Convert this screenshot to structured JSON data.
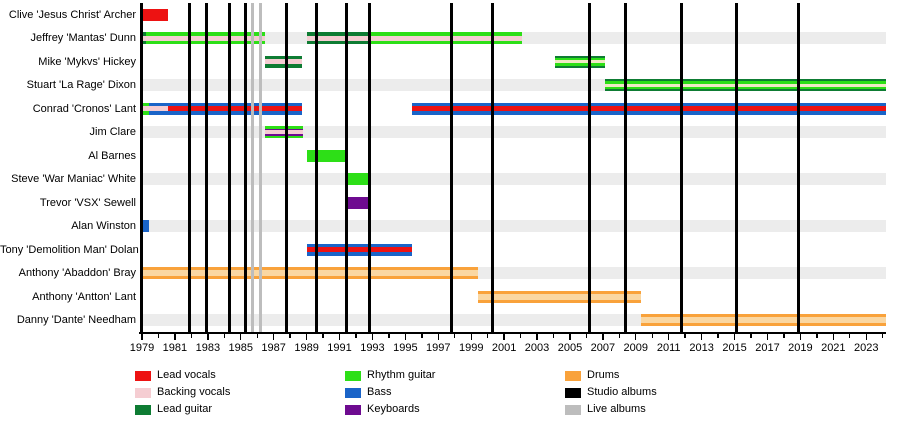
{
  "palette": {
    "lead_vocals": "#ed1212",
    "backing_vocals": "#f5cdd2",
    "lead_guitar": "#0e7c33",
    "rhythm_guitar": "#2ddf17",
    "bass": "#1a64c8",
    "keyboards": "#6e0b90",
    "drums": "#f9a23b",
    "drums_light": "#fad7a2",
    "cream": "#f0e9c5",
    "studio_albums": "#000000",
    "live_albums": "#bdbdbd"
  },
  "chart_data": {
    "type": "timeline",
    "x_axis": {
      "start": 1979,
      "end": 2024.2,
      "major_tick_years": [
        1979,
        1981,
        1983,
        1985,
        1987,
        1989,
        1991,
        1993,
        1995,
        1997,
        1999,
        2001,
        2003,
        2005,
        2007,
        2009,
        2011,
        2013,
        2015,
        2017,
        2019,
        2021,
        2023
      ],
      "minor_tick_interval": 1
    },
    "members": [
      {
        "name": "Clive 'Jesus Christ' Archer",
        "bars": [
          {
            "start": 1979,
            "end": 1980.6,
            "stripes": [
              [
                "lead_vocals",
                1
              ]
            ]
          }
        ]
      },
      {
        "name": "Jeffrey 'Mantas' Dunn",
        "bars": [
          {
            "start": 1979,
            "end": 1979.25,
            "stripes": [
              [
                "lead_guitar",
                0.3
              ],
              [
                "backing_vocals",
                0.4
              ],
              [
                "lead_guitar",
                0.3
              ]
            ]
          },
          {
            "start": 1979.25,
            "end": 1986.5,
            "stripes": [
              [
                "rhythm_guitar",
                0.3
              ],
              [
                "backing_vocals",
                0.4
              ],
              [
                "rhythm_guitar",
                0.3
              ]
            ]
          },
          {
            "start": 1989,
            "end": 1992.75,
            "stripes": [
              [
                "lead_guitar",
                0.3
              ],
              [
                "backing_vocals",
                0.4
              ],
              [
                "lead_guitar",
                0.3
              ]
            ]
          },
          {
            "start": 1992.75,
            "end": 2002.1,
            "stripes": [
              [
                "rhythm_guitar",
                0.3
              ],
              [
                "backing_vocals",
                0.4
              ],
              [
                "rhythm_guitar",
                0.3
              ]
            ]
          }
        ]
      },
      {
        "name": "Mike 'Mykvs' Hickey",
        "bars": [
          {
            "start": 1986.5,
            "end": 1988.7,
            "stripes": [
              [
                "lead_guitar",
                0.3
              ],
              [
                "backing_vocals",
                0.4
              ],
              [
                "lead_guitar",
                0.3
              ]
            ]
          },
          {
            "start": 2004.1,
            "end": 2007.1,
            "stripes": [
              [
                "lead_guitar",
                0.18
              ],
              [
                "rhythm_guitar",
                0.2
              ],
              [
                "cream",
                0.24
              ],
              [
                "rhythm_guitar",
                0.2
              ],
              [
                "lead_guitar",
                0.18
              ]
            ]
          }
        ]
      },
      {
        "name": "Stuart 'La Rage' Dixon",
        "bars": [
          {
            "start": 2007.1,
            "end": 2024.2,
            "stripes": [
              [
                "lead_guitar",
                0.18
              ],
              [
                "rhythm_guitar",
                0.2
              ],
              [
                "cream",
                0.24
              ],
              [
                "rhythm_guitar",
                0.2
              ],
              [
                "lead_guitar",
                0.18
              ]
            ]
          }
        ]
      },
      {
        "name": "Conrad 'Cronos' Lant",
        "bars": [
          {
            "start": 1979,
            "end": 1979.4,
            "stripes": [
              [
                "rhythm_guitar",
                0.3
              ],
              [
                "backing_vocals",
                0.4
              ],
              [
                "rhythm_guitar",
                0.3
              ]
            ]
          },
          {
            "start": 1979.4,
            "end": 1980.6,
            "stripes": [
              [
                "bass",
                0.29
              ],
              [
                "backing_vocals",
                0.42
              ],
              [
                "bass",
                0.29
              ]
            ]
          },
          {
            "start": 1980.6,
            "end": 1988.7,
            "stripes": [
              [
                "bass",
                0.29
              ],
              [
                "lead_vocals",
                0.42
              ],
              [
                "bass",
                0.29
              ]
            ]
          },
          {
            "start": 1995.4,
            "end": 2024.2,
            "stripes": [
              [
                "bass",
                0.29
              ],
              [
                "lead_vocals",
                0.42
              ],
              [
                "bass",
                0.29
              ]
            ]
          }
        ]
      },
      {
        "name": "Jim Clare",
        "bars": [
          {
            "start": 1986.5,
            "end": 1988.8,
            "stripes": [
              [
                "rhythm_guitar",
                0.19
              ],
              [
                "keyboards",
                0.15
              ],
              [
                "backing_vocals",
                0.32
              ],
              [
                "keyboards",
                0.15
              ],
              [
                "rhythm_guitar",
                0.19
              ]
            ]
          }
        ]
      },
      {
        "name": "Al Barnes",
        "bars": [
          {
            "start": 1989,
            "end": 1991.35,
            "stripes": [
              [
                "rhythm_guitar",
                1
              ]
            ]
          }
        ]
      },
      {
        "name": "Steve 'War Maniac' White",
        "bars": [
          {
            "start": 1991.35,
            "end": 1992.75,
            "stripes": [
              [
                "rhythm_guitar",
                1
              ]
            ]
          }
        ]
      },
      {
        "name": "Trevor 'VSX' Sewell",
        "bars": [
          {
            "start": 1991.35,
            "end": 1992.75,
            "stripes": [
              [
                "keyboards",
                1
              ]
            ]
          }
        ]
      },
      {
        "name": "Alan Winston",
        "bars": [
          {
            "start": 1979,
            "end": 1979.45,
            "stripes": [
              [
                "bass",
                1
              ]
            ]
          }
        ]
      },
      {
        "name": "Tony 'Demolition Man' Dolan",
        "bars": [
          {
            "start": 1989,
            "end": 1995.4,
            "stripes": [
              [
                "bass",
                0.29
              ],
              [
                "lead_vocals",
                0.42
              ],
              [
                "bass",
                0.29
              ]
            ]
          }
        ]
      },
      {
        "name": "Anthony 'Abaddon' Bray",
        "bars": [
          {
            "start": 1979,
            "end": 1999.4,
            "stripes": [
              [
                "drums",
                0.27
              ],
              [
                "drums_light",
                0.46
              ],
              [
                "drums",
                0.27
              ]
            ]
          }
        ]
      },
      {
        "name": "Anthony 'Antton' Lant",
        "bars": [
          {
            "start": 1999.4,
            "end": 2009.3,
            "stripes": [
              [
                "drums",
                0.27
              ],
              [
                "drums_light",
                0.46
              ],
              [
                "drums",
                0.27
              ]
            ]
          }
        ]
      },
      {
        "name": "Danny 'Dante' Needham",
        "bars": [
          {
            "start": 2009.3,
            "end": 2024.2,
            "stripes": [
              [
                "drums",
                0.27
              ],
              [
                "drums_light",
                0.46
              ],
              [
                "drums",
                0.27
              ]
            ]
          }
        ]
      }
    ],
    "studio_album_years": [
      1981.9,
      1982.9,
      1984.3,
      1985.3,
      1987.8,
      1989.6,
      1991.4,
      1992.8,
      1997.8,
      2000.3,
      2006.2,
      2008.4,
      2011.8,
      2015.1,
      2018.9
    ],
    "live_album_years": [
      1985.7,
      1986.2
    ],
    "legend": [
      {
        "label": "Lead vocals",
        "key": "lead_vocals"
      },
      {
        "label": "Backing vocals",
        "key": "backing_vocals"
      },
      {
        "label": "Lead guitar",
        "key": "lead_guitar"
      },
      {
        "label": "Rhythm guitar",
        "key": "rhythm_guitar"
      },
      {
        "label": "Bass",
        "key": "bass"
      },
      {
        "label": "Keyboards",
        "key": "keyboards"
      },
      {
        "label": "Drums",
        "key": "drums"
      },
      {
        "label": "Studio albums",
        "key": "studio_albums"
      },
      {
        "label": "Live albums",
        "key": "live_albums"
      }
    ]
  }
}
